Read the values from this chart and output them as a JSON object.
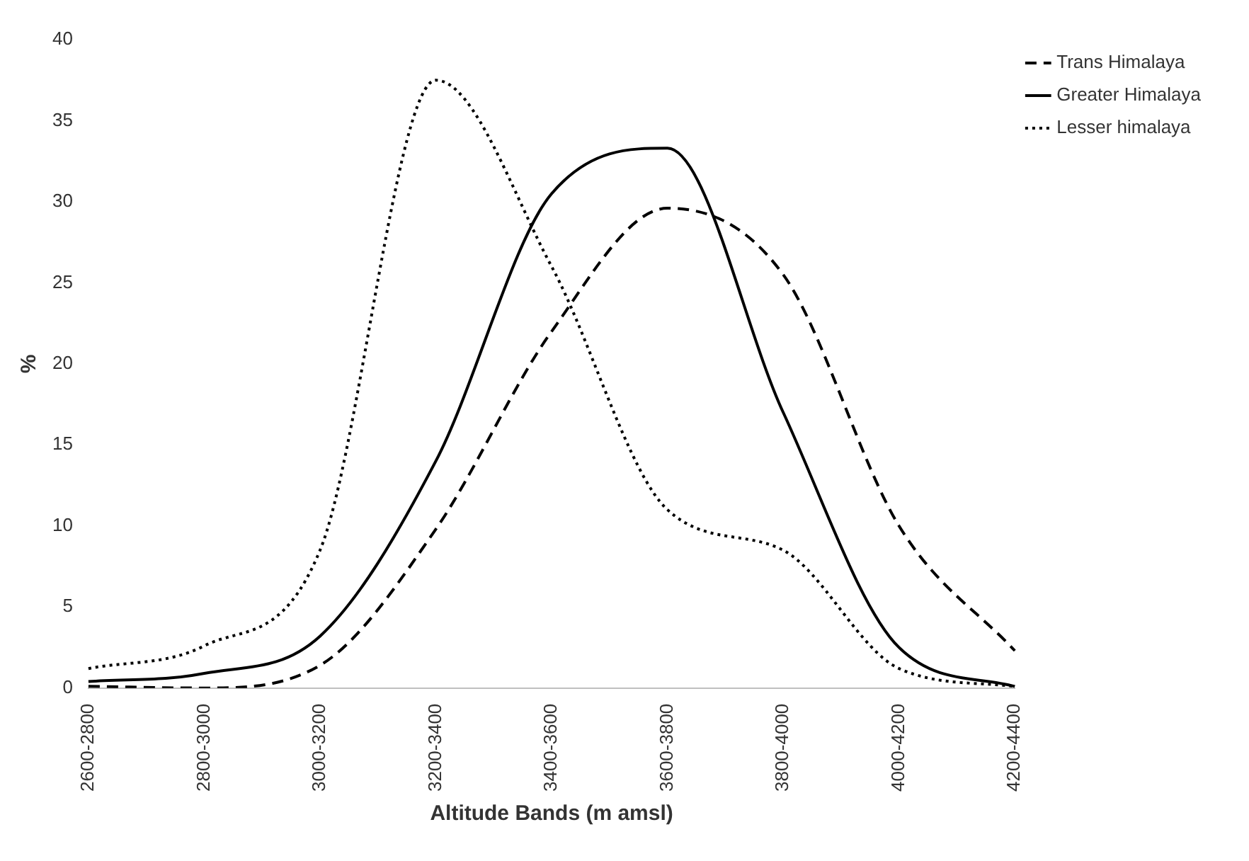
{
  "chart_data": {
    "type": "line",
    "xlabel": "Altitude Bands (m amsl)",
    "ylabel": "%",
    "categories": [
      "2600-2800",
      "2800-3000",
      "3000-3200",
      "3200-3400",
      "3400-3600",
      "3600-3800",
      "3800-4000",
      "4000-4200",
      "4200-4400"
    ],
    "series": [
      {
        "name": "Trans Himalaya",
        "color": "#000000",
        "line_style": "dashed",
        "values": [
          0.1,
          0,
          1.4,
          9.8,
          22,
          29.6,
          25.5,
          10,
          2.3
        ]
      },
      {
        "name": "Greater Himalaya",
        "color": "#000000",
        "line_style": "solid",
        "values": [
          0.4,
          0.9,
          3.2,
          14,
          30.5,
          33.3,
          17,
          2.5,
          0.1
        ]
      },
      {
        "name": "Lesser himalaya",
        "color": "#000000",
        "line_style": "dotted",
        "values": [
          1.2,
          2.6,
          8.5,
          37.5,
          26,
          11,
          8.5,
          1.2,
          0.1
        ]
      }
    ],
    "ylim": [
      0,
      40
    ],
    "yticks": [
      0,
      5,
      10,
      15,
      20,
      25,
      30,
      35,
      40
    ],
    "grid": false,
    "legend": "top right",
    "marker": "none"
  }
}
